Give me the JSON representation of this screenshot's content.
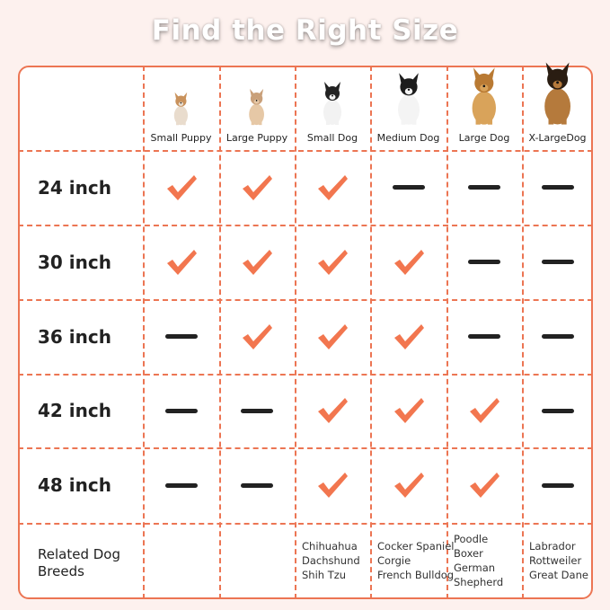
{
  "title": "Find the Right Size",
  "colors": {
    "accent": "#ec7553",
    "check": "#f2764f",
    "dash": "#222222",
    "background": "#fdf1ee"
  },
  "columns": [
    {
      "label": "Small Puppy",
      "image": "corgi-puppy"
    },
    {
      "label": "Large Puppy",
      "image": "chihuahua"
    },
    {
      "label": "Small Dog",
      "image": "french-bulldog"
    },
    {
      "label": "Medium Dog",
      "image": "border-collie"
    },
    {
      "label": "Large Dog",
      "image": "golden-retriever"
    },
    {
      "label": "X-LargeDog",
      "image": "german-shepherd"
    }
  ],
  "rows": [
    {
      "label": "24 inch",
      "fit": [
        true,
        true,
        true,
        false,
        false,
        false
      ]
    },
    {
      "label": "30 inch",
      "fit": [
        true,
        true,
        true,
        true,
        false,
        false
      ]
    },
    {
      "label": "36 inch",
      "fit": [
        false,
        true,
        true,
        true,
        false,
        false
      ]
    },
    {
      "label": "42 inch",
      "fit": [
        false,
        false,
        true,
        true,
        true,
        false
      ]
    },
    {
      "label": "48 inch",
      "fit": [
        false,
        false,
        true,
        true,
        true,
        false
      ]
    }
  ],
  "related": {
    "label_line1": "Related Dog",
    "label_line2": "Breeds",
    "breeds": [
      [],
      [],
      [
        "Chihuahua",
        "Dachshund",
        "Shih Tzu"
      ],
      [
        "Cocker Spaniel",
        "Corgie",
        "French Bulldog"
      ],
      [
        "Poodle",
        "Boxer",
        "German",
        "Shepherd"
      ],
      [
        "Labrador",
        "Rottweiler",
        "Great Dane"
      ]
    ]
  }
}
